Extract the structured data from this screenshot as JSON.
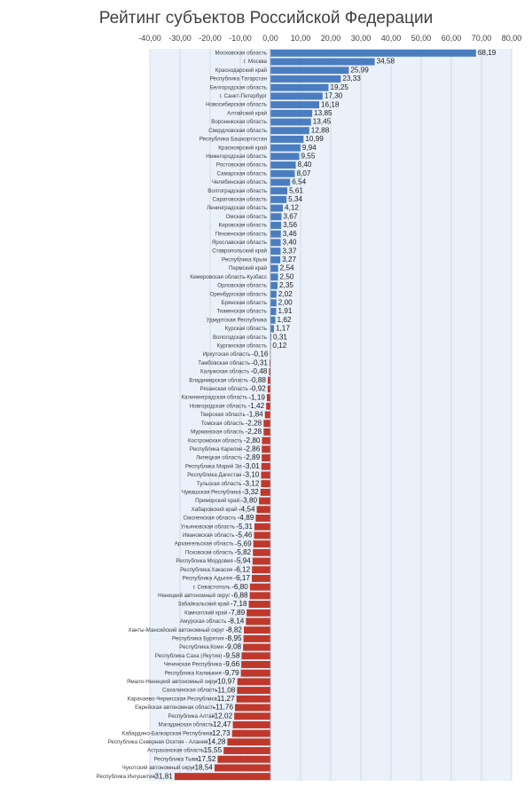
{
  "chart_data": {
    "type": "bar",
    "orientation": "horizontal",
    "title": "Рейтинг субъектов Российской Федерации",
    "xlim": [
      -40,
      80
    ],
    "x_ticks": [
      "-40,00",
      "-30,00",
      "-20,00",
      "-10,00",
      "0,00",
      "10,00",
      "20,00",
      "30,00",
      "40,00",
      "50,00",
      "60,00",
      "70,00",
      "80,00"
    ],
    "x_axis_position": "top",
    "grid": true,
    "colors": {
      "positive": "#4a7dc0",
      "negative": "#c0382b",
      "plot_background": "#eaf1fa",
      "grid": "#c9d6e8"
    },
    "categories": [
      "Московская область",
      "г. Москва",
      "Краснодарский край",
      "Республика Татарстан",
      "Белгородская область",
      "г. Санкт-Петербург",
      "Новосибирская область",
      "Алтайский край",
      "Воронежская область",
      "Свердловская область",
      "Республика Башкортостан",
      "Красноярский край",
      "Нижегородская область",
      "Ростовская область",
      "Самарская область",
      "Челябинская область",
      "Волгоградская область",
      "Саратовская область",
      "Ленинградская область",
      "Омская область",
      "Кировская область",
      "Пензенская область",
      "Ярославская область",
      "Ставропольский край",
      "Республика Крым",
      "Пермский край",
      "Кемеровская область-Кузбасс",
      "Орловская область",
      "Оренбургская область",
      "Брянская область",
      "Тюменская область",
      "Удмуртская Республика",
      "Курская область",
      "Вологодская область",
      "Курганская область",
      "Иркутская область",
      "Тамбовская область",
      "Калужская область",
      "Владимирская область",
      "Рязанская область",
      "Калининградская область",
      "Новгородская область",
      "Тверская область",
      "Томская область",
      "Мурманская область",
      "Костромская область",
      "Республика Карелия",
      "Липецкая область",
      "Республика Марий Эл",
      "Республика Дагестан",
      "Тульская область",
      "Чувашская Республика",
      "Приморский край",
      "Хабаровский край",
      "Смоленская область",
      "Ульяновская область",
      "Ивановская область",
      "Архангельская область",
      "Псковская область",
      "Республика Мордовия",
      "Республика Хакасия",
      "Республика Адыгея",
      "г. Севастополь",
      "Ненецкий автономный округ",
      "Забайкальский край",
      "Камчатский край",
      "Амурская область",
      "Ханты-Мансийский автономный округ",
      "Республика Бурятия",
      "Республика Коми",
      "Республика Саха (Якутия)",
      "Чеченская Республика",
      "Республика Калмыкия",
      "Ямало-Ненецкий автономный округ",
      "Сахалинская область",
      "Карачаево-Черкесская Республика",
      "Еврейская автономная область",
      "Республика Алтай",
      "Магаданская область",
      "Кабардино-Балкарская Республика",
      "Республика Северная Осетия - Алания",
      "Астраханская область",
      "Республика Тыва",
      "Чукотский автономный округ",
      "Республика Ингушетия"
    ],
    "values": [
      68.19,
      34.58,
      25.99,
      23.33,
      19.25,
      17.3,
      16.18,
      13.85,
      13.45,
      12.88,
      10.99,
      9.94,
      9.55,
      8.4,
      8.07,
      6.54,
      5.61,
      5.34,
      4.12,
      3.67,
      3.56,
      3.46,
      3.4,
      3.37,
      3.27,
      2.54,
      2.5,
      2.35,
      2.02,
      2.0,
      1.91,
      1.62,
      1.17,
      0.31,
      0.12,
      -0.16,
      -0.31,
      -0.48,
      -0.88,
      -0.92,
      -1.19,
      -1.42,
      -1.84,
      -2.28,
      -2.28,
      -2.8,
      -2.86,
      -2.89,
      -3.01,
      -3.1,
      -3.12,
      -3.32,
      -3.8,
      -4.54,
      -4.89,
      -5.31,
      -5.46,
      -5.69,
      -5.82,
      -5.94,
      -6.12,
      -6.17,
      -6.8,
      -6.88,
      -7.18,
      -7.89,
      -8.14,
      -8.82,
      -8.95,
      -9.08,
      -9.58,
      -9.66,
      -9.79,
      -10.97,
      -11.08,
      -11.27,
      -11.76,
      -12.02,
      -12.47,
      -12.73,
      -14.28,
      -15.55,
      -17.52,
      -18.54,
      -31.81
    ],
    "data_labels": [
      "68,19",
      "34,58",
      "25,99",
      "23,33",
      "19,25",
      "17,30",
      "16,18",
      "13,85",
      "13,45",
      "12,88",
      "10,99",
      "9,94",
      "9,55",
      "8,40",
      "8,07",
      "6,54",
      "5,61",
      "5,34",
      "4,12",
      "3,67",
      "3,56",
      "3,46",
      "3,40",
      "3,37",
      "3,27",
      "2,54",
      "2,50",
      "2,35",
      "2,02",
      "2,00",
      "1,91",
      "1,62",
      "1,17",
      "0,31",
      "0,12",
      "-0,16",
      "-0,31",
      "-0,48",
      "-0,88",
      "-0,92",
      "-1,19",
      "-1,42",
      "-1,84",
      "-2,28",
      "-2,28",
      "-2,80",
      "-2,86",
      "-2,89",
      "-3,01",
      "-3,10",
      "-3,12",
      "-3,32",
      "-3,80",
      "-4,54",
      "-4,89",
      "-5,31",
      "-5,46",
      "-5,69",
      "-5,82",
      "-5,94",
      "-6,12",
      "-6,17",
      "-6,80",
      "-6,88",
      "-7,18",
      "-7,89",
      "-8,14",
      "-8,82",
      "-8,95",
      "-9,08",
      "-9,58",
      "-9,66",
      "-9,79",
      "-10,97",
      "-11,08",
      "-11,27",
      "-11,76",
      "-12,02",
      "-12,47",
      "-12,73",
      "-14,28",
      "-15,55",
      "-17,52",
      "-18,54",
      "-31,81"
    ]
  }
}
